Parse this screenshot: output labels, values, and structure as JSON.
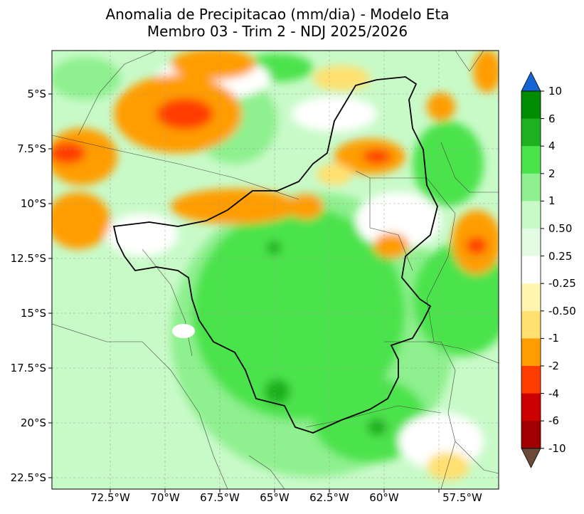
{
  "title": {
    "line1": "Anomalia de Precipitacao (mm/dia) - Modelo Eta",
    "line2": "Membro 03 - Trim 2 - NDJ 2025/2026"
  },
  "map": {
    "lat_ticks": [
      "5°S",
      "7.5°S",
      "10°S",
      "12.5°S",
      "15°S",
      "17.5°S",
      "20°S",
      "22.5°S"
    ],
    "lon_ticks": [
      "72.5°W",
      "70°W",
      "67.5°W",
      "65°W",
      "62.5°W",
      "60°W",
      "57.5°W"
    ],
    "gridlines": true
  },
  "colorbar": {
    "labels": [
      "10",
      "6",
      "4",
      "2",
      "1",
      "0.50",
      "0.25",
      "-0.25",
      "-0.50",
      "-1",
      "-2",
      "-4",
      "-6",
      "-10"
    ],
    "colors_top_to_bottom": [
      "#008c00",
      "#1eb01e",
      "#4be34b",
      "#8ef08e",
      "#c8fac8",
      "#e2fbe2",
      "#ffffff",
      "#fff5b0",
      "#ffe070",
      "#ff9d00",
      "#ff3c00",
      "#cc0000",
      "#a00000"
    ],
    "extend_max_color": "#1464d2",
    "extend_min_color": "#6b4a3a"
  }
}
